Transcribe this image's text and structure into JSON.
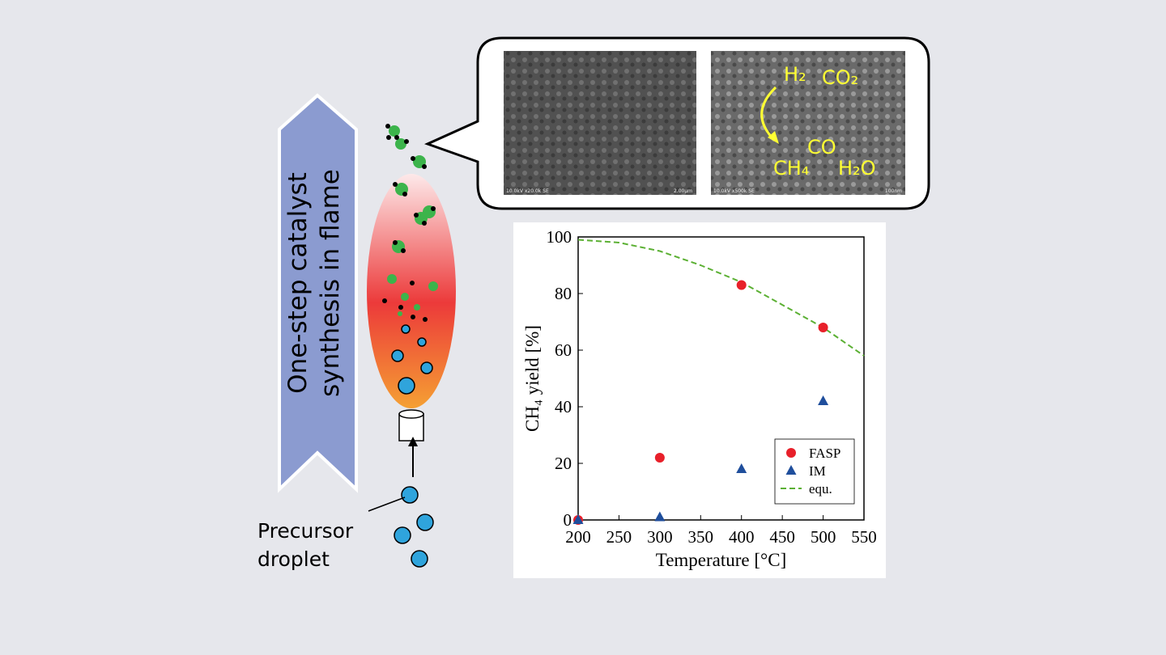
{
  "diagram": {
    "arrow_text": [
      "One-step catalyst",
      "synthesis in flame"
    ],
    "droplet_label": [
      "Precursor",
      "droplet"
    ],
    "sem_left": {
      "info": "10.0kV x20.0k SE",
      "scale": "2.00μm"
    },
    "sem_right": {
      "info": "10.0kV x500k SE",
      "scale": "100nm"
    },
    "species": {
      "h2": "H₂",
      "co2": "CO₂",
      "co": "CO",
      "ch4": "CH₄",
      "h2o": "H₂O"
    }
  },
  "chart_data": {
    "type": "scatter",
    "xlabel": "Temperature [°C]",
    "ylabel": "CH₄ yield [%]",
    "xlim": [
      200,
      550
    ],
    "ylim": [
      0,
      100
    ],
    "xticks": [
      200,
      250,
      300,
      350,
      400,
      450,
      500,
      550
    ],
    "yticks": [
      0,
      20,
      40,
      60,
      80,
      100
    ],
    "legend": "lower right",
    "series": [
      {
        "name": "FASP",
        "type": "scatter",
        "marker": "circle",
        "color": "#e8202a",
        "x": [
          200,
          300,
          400,
          500
        ],
        "values": [
          0,
          22,
          83,
          68
        ]
      },
      {
        "name": "IM",
        "type": "scatter",
        "marker": "triangle",
        "color": "#1f4e9c",
        "x": [
          200,
          300,
          400,
          500
        ],
        "values": [
          0,
          1,
          18,
          42
        ]
      },
      {
        "name": "equ.",
        "type": "line",
        "dashed": true,
        "color": "#5bb033",
        "x": [
          200,
          250,
          300,
          350,
          400,
          450,
          500,
          550
        ],
        "values": [
          99,
          98,
          95,
          90,
          84,
          76,
          68,
          58
        ]
      }
    ]
  }
}
